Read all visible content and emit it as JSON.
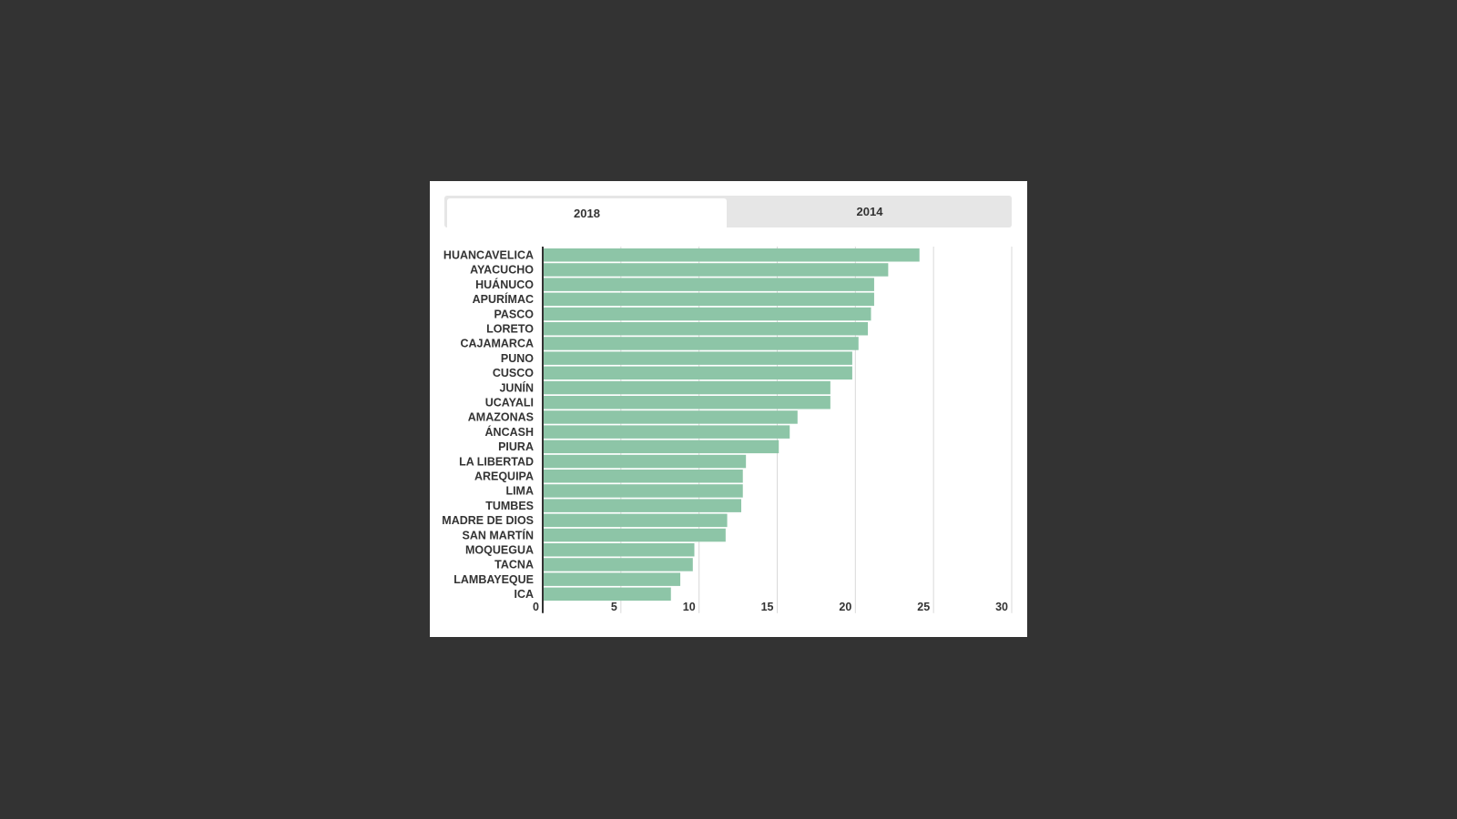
{
  "tabs": [
    {
      "label": "2018",
      "active": true
    },
    {
      "label": "2014",
      "active": false
    }
  ],
  "chart_data": {
    "type": "bar",
    "orientation": "horizontal",
    "title": "",
    "xlabel": "",
    "ylabel": "",
    "xlim": [
      0,
      30
    ],
    "ticks": [
      0,
      5,
      10,
      15,
      20,
      25,
      30
    ],
    "grid": true,
    "bar_color": "#8dc5a7",
    "categories": [
      "HUANCAVELICA",
      "AYACUCHO",
      "HUÁNUCO",
      "APURÍMAC",
      "PASCO",
      "LORETO",
      "CAJAMARCA",
      "PUNO",
      "CUSCO",
      "JUNÍN",
      "UCAYALI",
      "AMAZONAS",
      "ÁNCASH",
      "PIURA",
      "LA LIBERTAD",
      "AREQUIPA",
      "LIMA",
      "TUMBES",
      "MADRE DE DIOS",
      "SAN MARTÍN",
      "MOQUEGUA",
      "TACNA",
      "LAMBAYEQUE",
      "ICA"
    ],
    "values": [
      24.1,
      22.1,
      21.2,
      21.2,
      21.0,
      20.8,
      20.2,
      19.8,
      19.8,
      18.4,
      18.4,
      16.3,
      15.8,
      15.1,
      13.0,
      12.8,
      12.8,
      12.7,
      11.8,
      11.7,
      9.7,
      9.6,
      8.8,
      8.2
    ]
  }
}
